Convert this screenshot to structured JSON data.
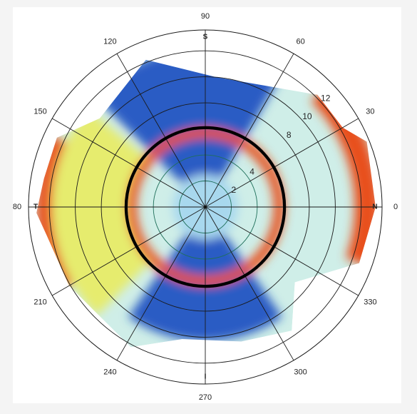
{
  "chart_data": {
    "type": "heatmap",
    "subtype": "polar-contour-map",
    "title": "",
    "angular_axis": {
      "unit": "degrees",
      "ticks": [
        0,
        30,
        60,
        90,
        120,
        150,
        180,
        210,
        240,
        270,
        300,
        330
      ],
      "tick_labels": [
        "0",
        "30",
        "60",
        "90",
        "120",
        "150",
        "180",
        "210",
        "240",
        "270",
        "300",
        "330"
      ],
      "orientation_labels": [
        {
          "angle": 90,
          "text": "S"
        },
        {
          "angle": 0,
          "text": "N"
        },
        {
          "angle": 180,
          "text": "T"
        },
        {
          "angle": 270,
          "text": "I"
        }
      ]
    },
    "radial_axis": {
      "ticks": [
        2,
        4,
        6,
        8,
        10,
        12
      ],
      "labeled_ticks": [
        "2",
        "4",
        "8",
        "10",
        "12"
      ],
      "range": [
        0,
        13.6
      ],
      "label_angle": 45
    },
    "boundary_ring_radius": 6.1,
    "measured_region_polygon": [
      [
        112,
        12.2
      ],
      [
        85,
        10.0
      ],
      [
        45,
        12.2
      ],
      [
        30,
        12.2
      ],
      [
        22,
        13.4
      ],
      [
        0,
        13.1
      ],
      [
        -20,
        12.6
      ],
      [
        -40,
        9.0
      ],
      [
        -55,
        11.6
      ],
      [
        -75,
        10.7
      ],
      [
        -100,
        10.3
      ],
      [
        -118,
        12.2
      ],
      [
        -150,
        12.1
      ],
      [
        -170,
        12.4
      ],
      [
        -178,
        13.0
      ],
      [
        170,
        12.6
      ],
      [
        155,
        12.6
      ],
      [
        140,
        10.6
      ]
    ],
    "color_scale": [
      "#1b3f9e",
      "#2a5cc4",
      "#5aa0dc",
      "#a8d8ee",
      "#cfeee8",
      "#cfe8b0",
      "#e6ec6e",
      "#f3e12a",
      "#f7a820",
      "#e8501c",
      "#c8101e"
    ],
    "zones": [
      {
        "region": "superior",
        "angle_range": [
          60,
          135
        ],
        "radius_range": [
          2.5,
          12.2
        ],
        "level": "low"
      },
      {
        "region": "inferior",
        "angle_range": [
          -125,
          -55
        ],
        "radius_range": [
          2.5,
          10.3
        ],
        "level": "low"
      },
      {
        "region": "central",
        "angle_range": [
          0,
          360
        ],
        "radius_range": [
          0,
          2.5
        ],
        "level": "mid-low"
      },
      {
        "region": "nasal-edge",
        "angle_range": [
          -20,
          45
        ],
        "radius_range": [
          11.5,
          13.4
        ],
        "level": "high"
      },
      {
        "region": "temporal-edge",
        "angle_range": [
          155,
          210
        ],
        "radius_range": [
          11.8,
          13.0
        ],
        "level": "high"
      },
      {
        "region": "ring-inner-edge",
        "angle_range": [
          0,
          360
        ],
        "radius_range": [
          5.3,
          6.1
        ],
        "level": "high"
      },
      {
        "region": "temporal-mid",
        "angle_range": [
          140,
          225
        ],
        "radius_range": [
          6.1,
          11.8
        ],
        "level": "mid-high"
      }
    ]
  }
}
